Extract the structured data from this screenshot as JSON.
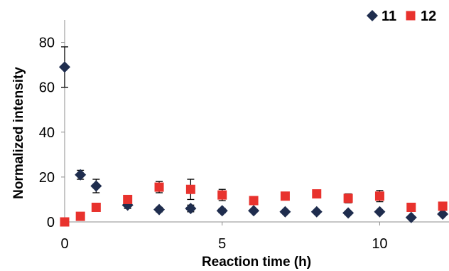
{
  "chart_data": {
    "type": "scatter",
    "xlabel": "Reaction time (h)",
    "ylabel": "Normalized intensity",
    "xlim": [
      0,
      12.2
    ],
    "ylim": [
      0,
      90
    ],
    "xticks": [
      0,
      5,
      10
    ],
    "yticks": [
      0,
      20,
      40,
      60,
      80
    ],
    "grid": false,
    "legend_position": "top-right",
    "series": [
      {
        "name": "11",
        "marker": "diamond",
        "color": "#1f2d4e",
        "points": [
          {
            "x": 0,
            "y": 69,
            "err": 9
          },
          {
            "x": 0.5,
            "y": 21,
            "err": 2
          },
          {
            "x": 1,
            "y": 16,
            "err": 3
          },
          {
            "x": 2,
            "y": 7.5,
            "err": 1.5
          },
          {
            "x": 3,
            "y": 5.5,
            "err": 1
          },
          {
            "x": 4,
            "y": 6,
            "err": 1.5
          },
          {
            "x": 5,
            "y": 5,
            "err": 1
          },
          {
            "x": 6,
            "y": 5,
            "err": 0.8
          },
          {
            "x": 7,
            "y": 4.5,
            "err": 0.5
          },
          {
            "x": 8,
            "y": 4.5,
            "err": 0.5
          },
          {
            "x": 9,
            "y": 4,
            "err": 0.5
          },
          {
            "x": 10,
            "y": 4.5,
            "err": 0.5
          },
          {
            "x": 11,
            "y": 2,
            "err": 0.5
          },
          {
            "x": 12,
            "y": 3.5,
            "err": 0.5
          }
        ]
      },
      {
        "name": "12",
        "marker": "square",
        "color": "#e8322d",
        "points": [
          {
            "x": 0,
            "y": 0,
            "err": 0
          },
          {
            "x": 0.5,
            "y": 2.5,
            "err": 0.5
          },
          {
            "x": 1,
            "y": 6.5,
            "err": 1.5
          },
          {
            "x": 2,
            "y": 10,
            "err": 1.5
          },
          {
            "x": 3,
            "y": 15.5,
            "err": 2.5
          },
          {
            "x": 4,
            "y": 14.5,
            "err": 4.5
          },
          {
            "x": 5,
            "y": 12,
            "err": 2.5
          },
          {
            "x": 6,
            "y": 9.5,
            "err": 1
          },
          {
            "x": 7,
            "y": 11.5,
            "err": 1
          },
          {
            "x": 8,
            "y": 12.5,
            "err": 1
          },
          {
            "x": 9,
            "y": 10.5,
            "err": 2
          },
          {
            "x": 10,
            "y": 11.5,
            "err": 2.5
          },
          {
            "x": 11,
            "y": 6.5,
            "err": 0.5
          },
          {
            "x": 12,
            "y": 7,
            "err": 0.5
          }
        ]
      }
    ]
  }
}
